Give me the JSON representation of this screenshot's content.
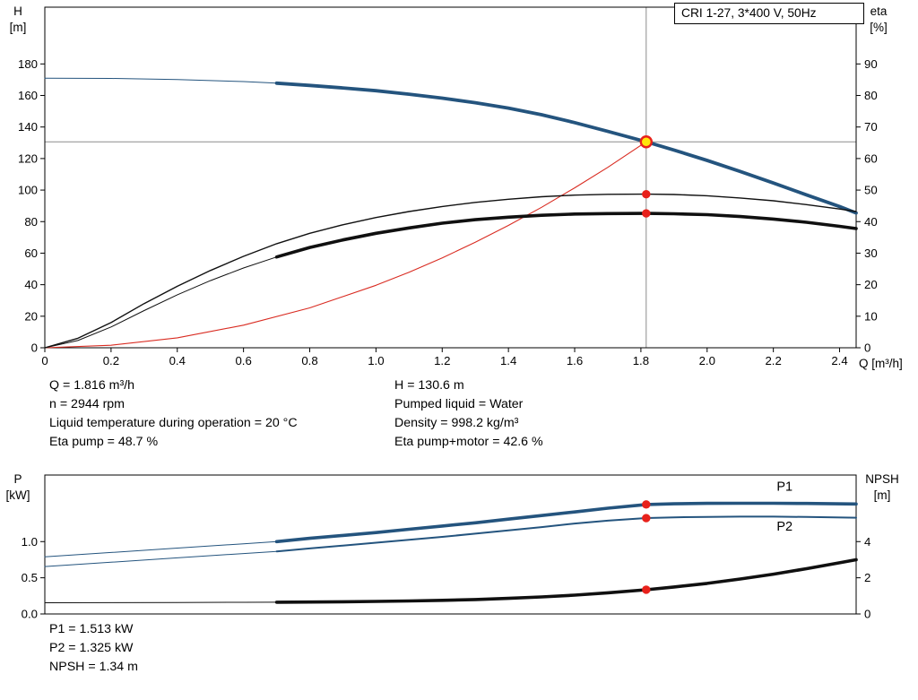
{
  "title_box": "CRI 1-27, 3*400 V, 50Hz",
  "info_panel": {
    "left": [
      "Q = 1.816 m³/h",
      "n = 2944 rpm",
      "Liquid temperature during operation = 20 °C",
      "Eta pump = 48.7 %"
    ],
    "right": [
      "H = 130.6 m",
      "Pumped liquid = Water",
      "Density = 998.2 kg/m³",
      "Eta pump+motor = 42.6 %"
    ]
  },
  "footer_panel": [
    "P1 = 1.513 kW",
    "P2 = 1.325 kW",
    "NPSH = 1.34 m"
  ],
  "colors": {
    "curve_blue": "#24547e",
    "label_blue": "#3470ad",
    "curve_black": "#101010",
    "curve_red": "#d92b21",
    "marker_red": "#e8211b",
    "duty_fill": "#ffe60a",
    "crosshair": "#8c8c8c",
    "axis": "#000000"
  },
  "chart_data": [
    {
      "type": "line",
      "title": "CRI 1-27, 3*400 V, 50Hz",
      "x_axis": {
        "label": "Q [m³/h]",
        "min": 0,
        "max": 2.45,
        "ticks": [
          0,
          0.2,
          0.4,
          0.6,
          0.8,
          1.0,
          1.2,
          1.4,
          1.6,
          1.8,
          2.0,
          2.2,
          2.4
        ],
        "tick_labels": [
          "0",
          "0.2",
          "0.4",
          "0.6",
          "0.8",
          "1.0",
          "1.2",
          "1.4",
          "1.6",
          "1.8",
          "2.0",
          "2.2",
          "2.4"
        ]
      },
      "y_left": {
        "symbol": "H",
        "unit": "[m]",
        "min": 0,
        "max": 216,
        "ticks": [
          0,
          20,
          40,
          60,
          80,
          100,
          120,
          140,
          160,
          180
        ],
        "tick_labels": [
          "0",
          "20",
          "40",
          "60",
          "80",
          "100",
          "120",
          "140",
          "160",
          "180"
        ]
      },
      "y_right": {
        "symbol": "eta",
        "unit": "[%]",
        "min": 0,
        "max": 108,
        "ticks": [
          0,
          10,
          20,
          30,
          40,
          50,
          60,
          70,
          80,
          90
        ],
        "tick_labels": [
          "0",
          "10",
          "20",
          "30",
          "40",
          "50",
          "60",
          "70",
          "80",
          "90"
        ]
      },
      "crosshair": {
        "q": 1.816,
        "h": 130.6
      },
      "duty_point": {
        "q": 1.816,
        "h": 130.6
      },
      "series": [
        {
          "name": "head-curve",
          "axis": "left",
          "color": "#24547e",
          "width": 3.8,
          "thin_until": 0.7,
          "thin_width": 1,
          "points": [
            [
              0,
              171
            ],
            [
              0.2,
              170.8
            ],
            [
              0.4,
              170.1
            ],
            [
              0.6,
              168.8
            ],
            [
              0.7,
              167.8
            ],
            [
              0.8,
              166.4
            ],
            [
              0.9,
              164.8
            ],
            [
              1.0,
              163.0
            ],
            [
              1.1,
              160.8
            ],
            [
              1.2,
              158.3
            ],
            [
              1.3,
              155.4
            ],
            [
              1.4,
              152.0
            ],
            [
              1.5,
              147.8
            ],
            [
              1.6,
              142.8
            ],
            [
              1.7,
              137.2
            ],
            [
              1.816,
              130.6
            ],
            [
              1.9,
              125.4
            ],
            [
              2.0,
              118.8
            ],
            [
              2.1,
              111.8
            ],
            [
              2.2,
              104.5
            ],
            [
              2.3,
              97.0
            ],
            [
              2.4,
              89.6
            ],
            [
              2.45,
              85.5
            ]
          ]
        },
        {
          "name": "affinity-parabola",
          "axis": "left",
          "color": "#d92b21",
          "width": 1.1,
          "points": [
            [
              0,
              0
            ],
            [
              0.2,
              1.6
            ],
            [
              0.4,
              6.3
            ],
            [
              0.6,
              14.3
            ],
            [
              0.8,
              25.3
            ],
            [
              1.0,
              39.6
            ],
            [
              1.1,
              47.9
            ],
            [
              1.2,
              57.0
            ],
            [
              1.3,
              66.9
            ],
            [
              1.4,
              77.6
            ],
            [
              1.5,
              89.1
            ],
            [
              1.6,
              101.4
            ],
            [
              1.7,
              114.4
            ],
            [
              1.816,
              130.6
            ]
          ]
        },
        {
          "name": "eta-pump",
          "axis": "right",
          "color": "#101010",
          "width": 1.4,
          "points": [
            [
              0,
              0
            ],
            [
              0.1,
              3
            ],
            [
              0.2,
              8
            ],
            [
              0.3,
              14
            ],
            [
              0.4,
              19.5
            ],
            [
              0.5,
              24.5
            ],
            [
              0.6,
              29
            ],
            [
              0.7,
              33
            ],
            [
              0.8,
              36.3
            ],
            [
              0.9,
              39
            ],
            [
              1.0,
              41.3
            ],
            [
              1.1,
              43.2
            ],
            [
              1.2,
              44.8
            ],
            [
              1.3,
              46.1
            ],
            [
              1.4,
              47.1
            ],
            [
              1.5,
              47.9
            ],
            [
              1.6,
              48.4
            ],
            [
              1.7,
              48.65
            ],
            [
              1.816,
              48.7
            ],
            [
              1.9,
              48.6
            ],
            [
              2.0,
              48.2
            ],
            [
              2.1,
              47.5
            ],
            [
              2.2,
              46.6
            ],
            [
              2.3,
              45.4
            ],
            [
              2.4,
              44.0
            ],
            [
              2.45,
              43.2
            ]
          ]
        },
        {
          "name": "eta-pump-motor",
          "axis": "right",
          "color": "#101010",
          "width": 3.6,
          "thin_until": 0.7,
          "thin_width": 1,
          "points": [
            [
              0,
              0
            ],
            [
              0.1,
              2.3
            ],
            [
              0.2,
              6.6
            ],
            [
              0.3,
              11.8
            ],
            [
              0.4,
              16.8
            ],
            [
              0.5,
              21.3
            ],
            [
              0.6,
              25.3
            ],
            [
              0.7,
              28.8
            ],
            [
              0.8,
              31.8
            ],
            [
              0.9,
              34.2
            ],
            [
              1.0,
              36.3
            ],
            [
              1.1,
              38.0
            ],
            [
              1.2,
              39.5
            ],
            [
              1.3,
              40.6
            ],
            [
              1.4,
              41.4
            ],
            [
              1.5,
              42.0
            ],
            [
              1.6,
              42.4
            ],
            [
              1.7,
              42.55
            ],
            [
              1.816,
              42.6
            ],
            [
              1.9,
              42.5
            ],
            [
              2.0,
              42.2
            ],
            [
              2.1,
              41.6
            ],
            [
              2.2,
              40.8
            ],
            [
              2.3,
              39.8
            ],
            [
              2.4,
              38.5
            ],
            [
              2.45,
              37.8
            ]
          ]
        }
      ],
      "markers": [
        {
          "q": 1.816,
          "v": 48.7,
          "axis": "right"
        },
        {
          "q": 1.816,
          "v": 42.6,
          "axis": "right"
        }
      ]
    },
    {
      "type": "line",
      "x_axis": {
        "label": "",
        "min": 0,
        "max": 2.45,
        "ticks": [],
        "tick_labels": []
      },
      "y_left": {
        "symbol": "P",
        "unit": "[kW]",
        "min": 0,
        "max": 1.92,
        "ticks": [
          0,
          0.5,
          1.0
        ],
        "tick_labels": [
          "0.0",
          "0.5",
          "1.0"
        ]
      },
      "y_right": {
        "symbol": "NPSH",
        "unit": "[m]",
        "min": 0,
        "max": 7.68,
        "ticks": [
          0,
          2,
          4
        ],
        "tick_labels": [
          "0",
          "2",
          "4"
        ]
      },
      "series": [
        {
          "name": "npsh-curve",
          "axis": "right",
          "color": "#101010",
          "width": 3.6,
          "thin_until": 0.7,
          "thin_width": 1,
          "points": [
            [
              0,
              0.62
            ],
            [
              0.2,
              0.625
            ],
            [
              0.4,
              0.635
            ],
            [
              0.6,
              0.645
            ],
            [
              0.7,
              0.65
            ],
            [
              0.8,
              0.66
            ],
            [
              0.9,
              0.675
            ],
            [
              1.0,
              0.695
            ],
            [
              1.1,
              0.72
            ],
            [
              1.2,
              0.755
            ],
            [
              1.3,
              0.8
            ],
            [
              1.4,
              0.86
            ],
            [
              1.5,
              0.94
            ],
            [
              1.6,
              1.04
            ],
            [
              1.7,
              1.17
            ],
            [
              1.816,
              1.34
            ],
            [
              1.9,
              1.49
            ],
            [
              2.0,
              1.69
            ],
            [
              2.1,
              1.93
            ],
            [
              2.2,
              2.2
            ],
            [
              2.3,
              2.5
            ],
            [
              2.4,
              2.83
            ],
            [
              2.45,
              3.0
            ]
          ]
        },
        {
          "name": "p2-curve",
          "axis": "left",
          "color": "#24547e",
          "width": 2.0,
          "thin_until": 0.7,
          "thin_width": 1,
          "points": [
            [
              0,
              0.655
            ],
            [
              0.2,
              0.715
            ],
            [
              0.4,
              0.775
            ],
            [
              0.6,
              0.835
            ],
            [
              0.7,
              0.865
            ],
            [
              0.8,
              0.905
            ],
            [
              0.9,
              0.945
            ],
            [
              1.0,
              0.985
            ],
            [
              1.1,
              1.025
            ],
            [
              1.2,
              1.065
            ],
            [
              1.3,
              1.11
            ],
            [
              1.4,
              1.155
            ],
            [
              1.5,
              1.2
            ],
            [
              1.6,
              1.25
            ],
            [
              1.7,
              1.29
            ],
            [
              1.816,
              1.325
            ],
            [
              1.9,
              1.335
            ],
            [
              2.0,
              1.342
            ],
            [
              2.1,
              1.345
            ],
            [
              2.2,
              1.345
            ],
            [
              2.3,
              1.34
            ],
            [
              2.45,
              1.33
            ]
          ]
        },
        {
          "name": "p1-curve",
          "axis": "left",
          "color": "#24547e",
          "width": 3.6,
          "thin_until": 0.7,
          "thin_width": 1,
          "points": [
            [
              0,
              0.79
            ],
            [
              0.2,
              0.85
            ],
            [
              0.4,
              0.91
            ],
            [
              0.6,
              0.97
            ],
            [
              0.7,
              1.0
            ],
            [
              0.8,
              1.045
            ],
            [
              0.9,
              1.085
            ],
            [
              1.0,
              1.125
            ],
            [
              1.1,
              1.17
            ],
            [
              1.2,
              1.215
            ],
            [
              1.3,
              1.26
            ],
            [
              1.4,
              1.31
            ],
            [
              1.5,
              1.36
            ],
            [
              1.6,
              1.41
            ],
            [
              1.7,
              1.462
            ],
            [
              1.816,
              1.513
            ],
            [
              1.9,
              1.522
            ],
            [
              2.0,
              1.528
            ],
            [
              2.1,
              1.53
            ],
            [
              2.2,
              1.53
            ],
            [
              2.3,
              1.527
            ],
            [
              2.45,
              1.52
            ]
          ]
        }
      ],
      "annotations": [
        {
          "text": "P1",
          "q": 2.21,
          "v": 1.705,
          "axis": "left",
          "color": "#3470ad"
        },
        {
          "text": "P2",
          "q": 2.21,
          "v": 1.155,
          "axis": "left",
          "color": "#3470ad"
        }
      ],
      "markers": [
        {
          "q": 1.816,
          "v": 1.513,
          "axis": "left"
        },
        {
          "q": 1.816,
          "v": 1.325,
          "axis": "left"
        },
        {
          "q": 1.816,
          "v": 1.34,
          "axis": "right"
        }
      ]
    }
  ]
}
